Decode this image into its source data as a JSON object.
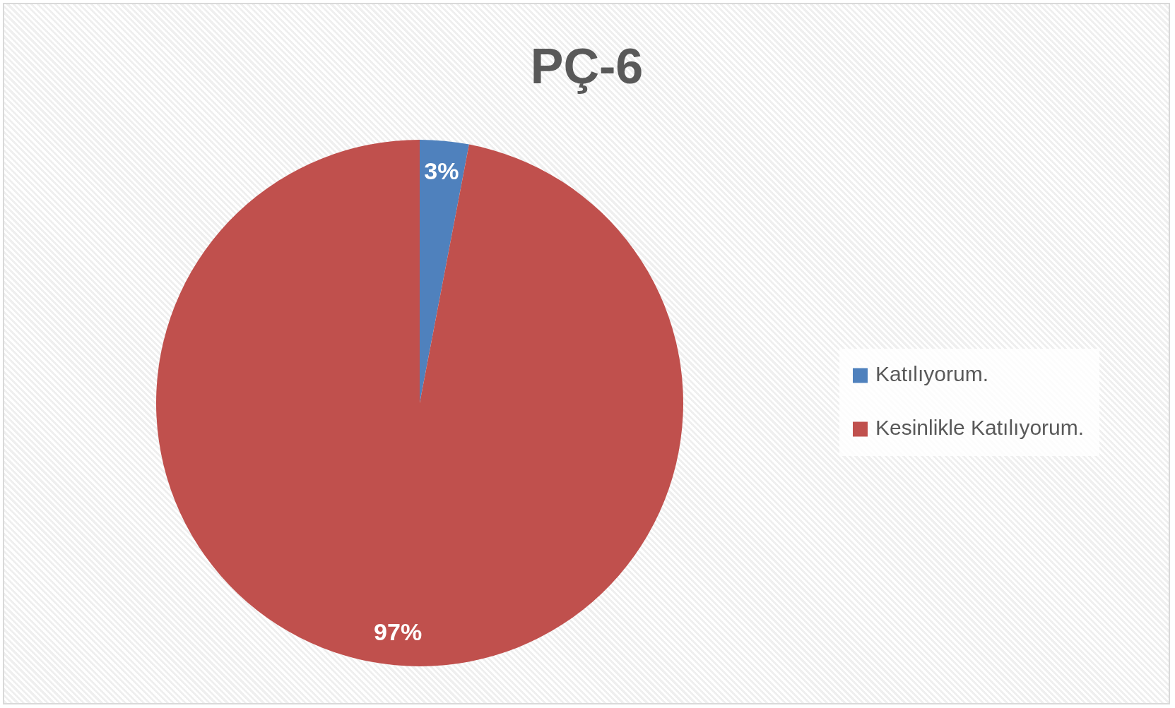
{
  "chart_data": {
    "type": "pie",
    "title": "PÇ-6",
    "categories": [
      "Katılıyorum.",
      "Kesinlikle Katılıyorum."
    ],
    "values": [
      3,
      97
    ],
    "colors": [
      "#4f81bd",
      "#c0504d"
    ],
    "value_labels": [
      "3%",
      "97%"
    ],
    "legend": "right"
  }
}
